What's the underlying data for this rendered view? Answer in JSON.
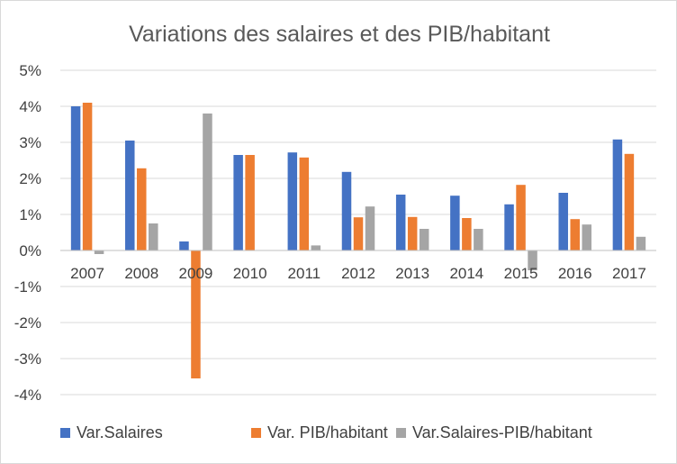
{
  "chart_data": {
    "type": "bar",
    "title": "Variations des salaires et des PIB/habitant",
    "xlabel": "",
    "ylabel": "",
    "ylim": [
      -4,
      5
    ],
    "y_ticks": [
      5,
      4,
      3,
      2,
      1,
      0,
      -1,
      -2,
      -3,
      -4
    ],
    "y_tick_labels": [
      "5%",
      "4%",
      "3%",
      "2%",
      "1%",
      "0%",
      "-1%",
      "-2%",
      "-3%",
      "-4%"
    ],
    "grid": true,
    "legend_position": "bottom",
    "categories": [
      "2007",
      "2008",
      "2009",
      "2010",
      "2011",
      "2012",
      "2013",
      "2014",
      "2015",
      "2016",
      "2017"
    ],
    "series": [
      {
        "name": "Var.Salaires",
        "color": "#4472c4",
        "values": [
          4.0,
          3.05,
          0.25,
          2.65,
          2.72,
          2.18,
          1.55,
          1.52,
          1.28,
          1.6,
          3.08
        ]
      },
      {
        "name": "Var. PIB/habitant",
        "color": "#ed7d31",
        "values": [
          4.1,
          2.28,
          -3.55,
          2.65,
          2.58,
          0.92,
          0.93,
          0.9,
          1.82,
          0.87,
          2.68
        ]
      },
      {
        "name": "Var.Salaires-PIB/habitant",
        "color": "#a5a5a5",
        "values": [
          -0.1,
          0.75,
          3.8,
          0.0,
          0.14,
          1.22,
          0.6,
          0.6,
          -0.55,
          0.72,
          0.38
        ]
      }
    ]
  },
  "colors": {
    "grid": "#d9d9d9",
    "axis": "#bfbfbf",
    "title": "#595959",
    "text": "#404040"
  }
}
